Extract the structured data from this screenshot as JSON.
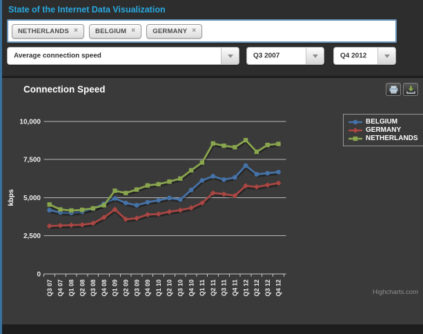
{
  "app": {
    "title": "State of the Internet Data Visualization"
  },
  "filters": {
    "tags": [
      {
        "label": "NETHERLANDS"
      },
      {
        "label": "BELGIUM"
      },
      {
        "label": "GERMANY"
      }
    ],
    "remove_icon": "×",
    "metric_select": {
      "value": "Average connection speed"
    },
    "start_select": {
      "value": "Q3 2007"
    },
    "end_select": {
      "value": "Q4 2012"
    }
  },
  "chart_panel": {
    "title": "Connection Speed",
    "credit": "Highcharts.com"
  },
  "colors": {
    "accent_title": "#29a9e0",
    "panel_bg": "#3a3a3a",
    "header_bg": "#2d2d2d",
    "grid_line": "#bbbbbb",
    "axis_text": "#eeeeee"
  },
  "chart_data": {
    "type": "line",
    "title": "Connection Speed",
    "xlabel": "",
    "ylabel": "kbps",
    "ylim": [
      0,
      10000
    ],
    "yticks": [
      0,
      2500,
      5000,
      7500,
      10000
    ],
    "ytick_labels": [
      "0",
      "2,500",
      "5,000",
      "7,500",
      "10,000"
    ],
    "grid": true,
    "legend_position": "right",
    "categories": [
      "Q3 07",
      "Q4 07",
      "Q1 08",
      "Q2 08",
      "Q3 08",
      "Q4 08",
      "Q1 09",
      "Q2 09",
      "Q3 09",
      "Q4 09",
      "Q1 10",
      "Q2 10",
      "Q3 10",
      "Q4 10",
      "Q1 11",
      "Q2 11",
      "Q3 11",
      "Q4 11",
      "Q1 12",
      "Q2 12",
      "Q3 12",
      "Q4 12"
    ],
    "series": [
      {
        "name": "BELGIUM",
        "color": "#4572A7",
        "marker": "circle",
        "values": [
          4180,
          4030,
          4000,
          4070,
          4270,
          4600,
          4950,
          4650,
          4500,
          4700,
          4825,
          4975,
          4870,
          5500,
          6130,
          6400,
          6180,
          6320,
          7100,
          6530,
          6600,
          6675
        ]
      },
      {
        "name": "GERMANY",
        "color": "#AA4643",
        "marker": "diamond",
        "values": [
          3140,
          3170,
          3200,
          3220,
          3320,
          3700,
          4225,
          3580,
          3650,
          3890,
          3925,
          4075,
          4180,
          4330,
          4650,
          5300,
          5230,
          5125,
          5775,
          5700,
          5825,
          5950
        ]
      },
      {
        "name": "NETHERLANDS",
        "color": "#89A54E",
        "marker": "square",
        "values": [
          4550,
          4225,
          4160,
          4200,
          4300,
          4500,
          5450,
          5300,
          5530,
          5800,
          5880,
          6050,
          6250,
          6790,
          7300,
          8550,
          8400,
          8300,
          8765,
          8000,
          8450,
          8520
        ]
      }
    ]
  }
}
